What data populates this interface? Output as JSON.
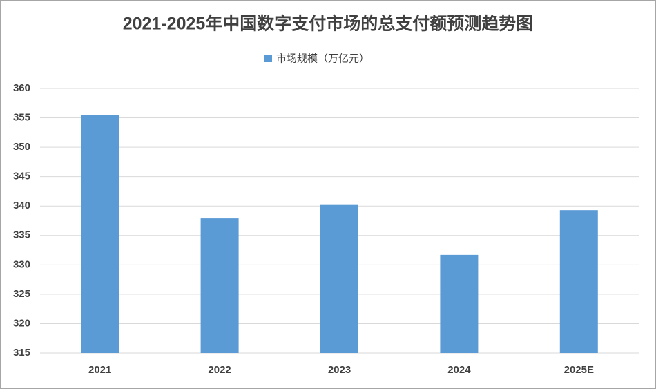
{
  "chart_data": {
    "type": "bar",
    "title": "2021-2025年中国数字支付市场的总支付额预测趋势图",
    "categories": [
      "2021",
      "2022",
      "2023",
      "2024",
      "2025E"
    ],
    "series": [
      {
        "name": "市场规模（万亿元）",
        "color": "#5b9bd5",
        "values": [
          355.5,
          337.9,
          340.3,
          331.7,
          339.3
        ]
      }
    ],
    "ylim": [
      315,
      360
    ],
    "yticks": [
      315,
      320,
      325,
      330,
      335,
      340,
      345,
      350,
      355,
      360
    ],
    "grid": true,
    "legend": "top"
  }
}
